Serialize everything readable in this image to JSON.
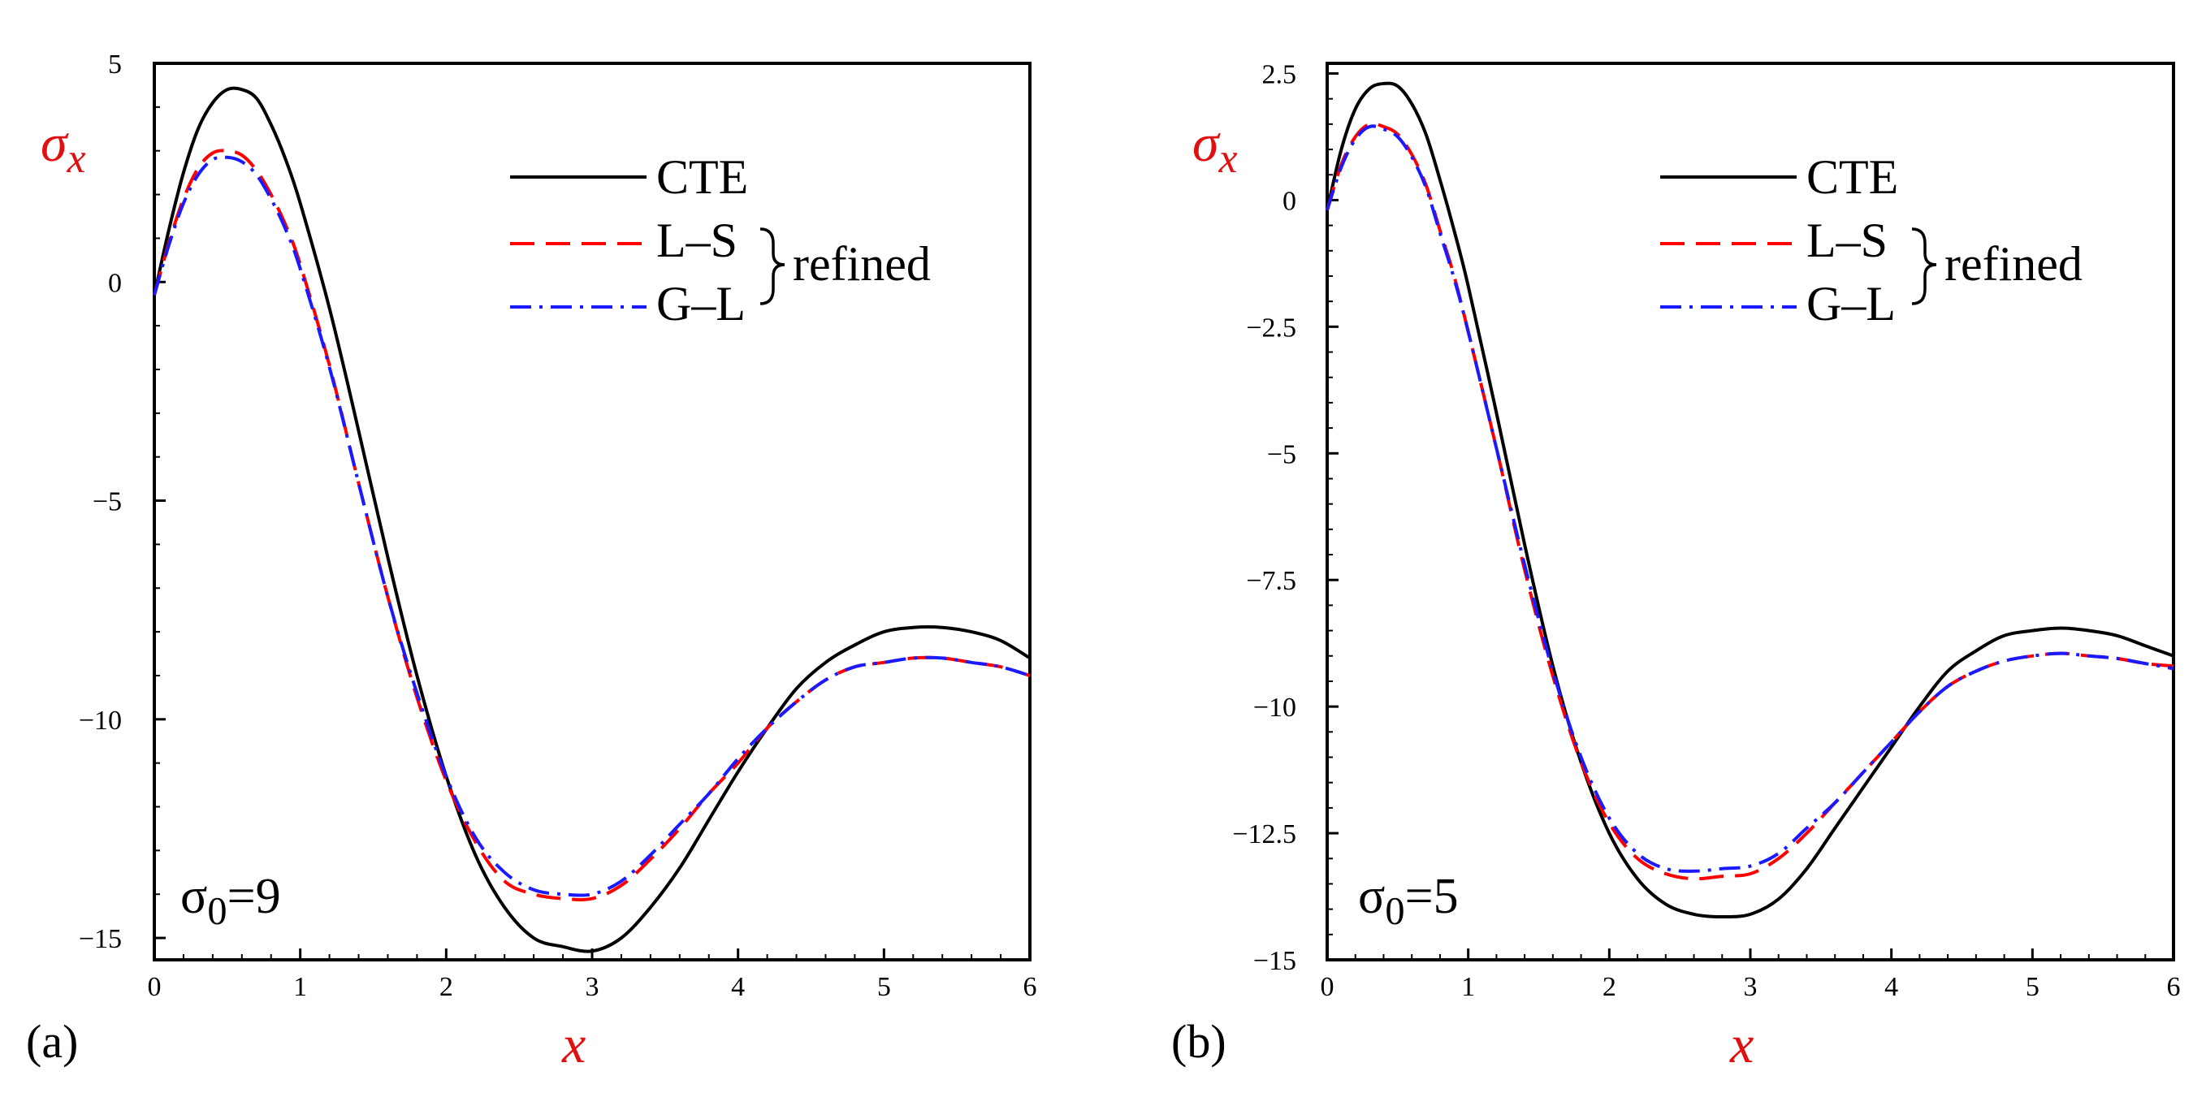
{
  "chart_data": [
    {
      "type": "line",
      "panel_label": "(a)",
      "xlabel": "x",
      "ylabel": "σx",
      "annotation": "σ0=9",
      "xlim": [
        0,
        6
      ],
      "ylim": [
        -15.5,
        5
      ],
      "xticks": [
        0,
        1,
        2,
        3,
        4,
        5,
        6
      ],
      "yticks": [
        5,
        0,
        -5,
        -10,
        -15
      ],
      "xtick_labels": [
        "0",
        "1",
        "2",
        "3",
        "4",
        "5",
        "6"
      ],
      "ytick_labels": [
        "5",
        "0",
        "−5",
        "−10",
        "−15"
      ],
      "legend": {
        "placement": "top-right",
        "group_label": "refined"
      },
      "series": [
        {
          "name": "CTE",
          "color": "#000000",
          "style": "solid",
          "x": [
            0,
            0.1,
            0.2,
            0.3,
            0.4,
            0.5,
            0.6,
            0.7,
            0.8,
            0.9,
            1.0,
            1.2,
            1.4,
            1.6,
            1.8,
            2.0,
            2.2,
            2.4,
            2.6,
            2.8,
            3.0,
            3.2,
            3.4,
            3.6,
            3.8,
            4.0,
            4.2,
            4.4,
            4.6,
            4.8,
            5.0,
            5.2,
            5.4,
            5.6,
            5.8,
            6.0
          ],
          "y": [
            -0.3,
            1.2,
            2.5,
            3.5,
            4.1,
            4.4,
            4.4,
            4.2,
            3.6,
            2.8,
            1.8,
            -0.6,
            -3.4,
            -6.3,
            -9.0,
            -11.3,
            -13.1,
            -14.3,
            -15.0,
            -15.2,
            -15.3,
            -15.0,
            -14.3,
            -13.4,
            -12.3,
            -11.2,
            -10.2,
            -9.3,
            -8.7,
            -8.3,
            -8.0,
            -7.9,
            -7.9,
            -8.0,
            -8.2,
            -8.6
          ]
        },
        {
          "name": "L–S",
          "color": "#ff0000",
          "style": "dashed",
          "x": [
            0,
            0.1,
            0.2,
            0.3,
            0.4,
            0.5,
            0.6,
            0.7,
            0.8,
            0.9,
            1.0,
            1.2,
            1.4,
            1.6,
            1.8,
            2.0,
            2.2,
            2.4,
            2.6,
            2.8,
            3.0,
            3.2,
            3.4,
            3.6,
            3.8,
            4.0,
            4.2,
            4.4,
            4.6,
            4.8,
            5.0,
            5.2,
            5.4,
            5.6,
            5.8,
            6.0
          ],
          "y": [
            -0.3,
            0.9,
            1.9,
            2.6,
            2.95,
            3.0,
            2.9,
            2.55,
            2.0,
            1.3,
            0.4,
            -1.9,
            -4.6,
            -7.2,
            -9.5,
            -11.4,
            -12.8,
            -13.7,
            -14.0,
            -14.1,
            -14.1,
            -13.8,
            -13.2,
            -12.5,
            -11.7,
            -11.0,
            -10.2,
            -9.6,
            -9.1,
            -8.8,
            -8.7,
            -8.6,
            -8.6,
            -8.7,
            -8.8,
            -9.0
          ]
        },
        {
          "name": "G–L",
          "color": "#1a1aff",
          "style": "dashdot",
          "x": [
            0,
            0.1,
            0.2,
            0.3,
            0.4,
            0.5,
            0.6,
            0.7,
            0.8,
            0.9,
            1.0,
            1.2,
            1.4,
            1.6,
            1.8,
            2.0,
            2.2,
            2.4,
            2.6,
            2.8,
            3.0,
            3.2,
            3.4,
            3.6,
            3.8,
            4.0,
            4.2,
            4.4,
            4.6,
            4.8,
            5.0,
            5.2,
            5.4,
            5.6,
            5.8,
            6.0
          ],
          "y": [
            -0.3,
            0.85,
            1.8,
            2.45,
            2.8,
            2.85,
            2.75,
            2.45,
            1.9,
            1.2,
            0.3,
            -1.95,
            -4.6,
            -7.2,
            -9.4,
            -11.3,
            -12.7,
            -13.5,
            -13.9,
            -14.0,
            -14.0,
            -13.7,
            -13.1,
            -12.4,
            -11.7,
            -10.9,
            -10.2,
            -9.6,
            -9.1,
            -8.8,
            -8.7,
            -8.6,
            -8.6,
            -8.7,
            -8.8,
            -9.0
          ]
        }
      ]
    },
    {
      "type": "line",
      "panel_label": "(b)",
      "xlabel": "x",
      "ylabel": "σx",
      "annotation": "σ0=5",
      "xlim": [
        0,
        6
      ],
      "ylim": [
        -15,
        2.7
      ],
      "xticks": [
        0,
        1,
        2,
        3,
        4,
        5,
        6
      ],
      "yticks": [
        2.5,
        0,
        -2.5,
        -5,
        -7.5,
        -10,
        -12.5,
        -15
      ],
      "xtick_labels": [
        "0",
        "1",
        "2",
        "3",
        "4",
        "5",
        "6"
      ],
      "ytick_labels": [
        "2.5",
        "0",
        "−2.5",
        "−5",
        "−7.5",
        "−10",
        "−12.5",
        "−15"
      ],
      "legend": {
        "placement": "top-right",
        "group_label": "refined"
      },
      "series": [
        {
          "name": "CTE",
          "color": "#000000",
          "style": "solid",
          "x": [
            0,
            0.1,
            0.2,
            0.3,
            0.4,
            0.5,
            0.6,
            0.7,
            0.8,
            0.9,
            1.0,
            1.2,
            1.4,
            1.6,
            1.8,
            2.0,
            2.2,
            2.4,
            2.6,
            2.8,
            3.0,
            3.2,
            3.4,
            3.6,
            3.8,
            4.0,
            4.2,
            4.4,
            4.6,
            4.8,
            5.0,
            5.2,
            5.4,
            5.6,
            5.8,
            6.0
          ],
          "y": [
            -0.2,
            1.0,
            1.8,
            2.2,
            2.3,
            2.25,
            1.9,
            1.3,
            0.4,
            -0.6,
            -1.7,
            -4.2,
            -6.8,
            -9.2,
            -11.1,
            -12.5,
            -13.4,
            -13.9,
            -14.1,
            -14.15,
            -14.1,
            -13.8,
            -13.2,
            -12.4,
            -11.6,
            -10.8,
            -10.0,
            -9.3,
            -8.9,
            -8.6,
            -8.5,
            -8.45,
            -8.5,
            -8.6,
            -8.8,
            -9.0
          ]
        },
        {
          "name": "L–S",
          "color": "#ff0000",
          "style": "dashed",
          "x": [
            0,
            0.1,
            0.2,
            0.3,
            0.4,
            0.5,
            0.6,
            0.7,
            0.8,
            0.9,
            1.0,
            1.2,
            1.4,
            1.6,
            1.8,
            2.0,
            2.2,
            2.4,
            2.6,
            2.8,
            3.0,
            3.2,
            3.4,
            3.6,
            3.8,
            4.0,
            4.2,
            4.4,
            4.6,
            4.8,
            5.0,
            5.2,
            5.4,
            5.6,
            5.8,
            6.0
          ],
          "y": [
            -0.2,
            0.7,
            1.25,
            1.5,
            1.45,
            1.3,
            0.9,
            0.3,
            -0.6,
            -1.5,
            -2.6,
            -4.9,
            -7.3,
            -9.4,
            -11.1,
            -12.3,
            -13.0,
            -13.3,
            -13.4,
            -13.35,
            -13.3,
            -13.0,
            -12.5,
            -11.9,
            -11.3,
            -10.7,
            -10.1,
            -9.6,
            -9.3,
            -9.1,
            -9.0,
            -8.95,
            -9.0,
            -9.05,
            -9.15,
            -9.2
          ]
        },
        {
          "name": "G–L",
          "color": "#1a1aff",
          "style": "dashdot",
          "x": [
            0,
            0.1,
            0.2,
            0.3,
            0.4,
            0.5,
            0.6,
            0.7,
            0.8,
            0.9,
            1.0,
            1.2,
            1.4,
            1.6,
            1.8,
            2.0,
            2.2,
            2.4,
            2.6,
            2.8,
            3.0,
            3.2,
            3.4,
            3.6,
            3.8,
            4.0,
            4.2,
            4.4,
            4.6,
            4.8,
            5.0,
            5.2,
            5.4,
            5.6,
            5.8,
            6.0
          ],
          "y": [
            -0.2,
            0.65,
            1.2,
            1.45,
            1.4,
            1.25,
            0.85,
            0.25,
            -0.65,
            -1.55,
            -2.6,
            -4.9,
            -7.2,
            -9.3,
            -11.0,
            -12.2,
            -12.9,
            -13.2,
            -13.25,
            -13.2,
            -13.15,
            -12.9,
            -12.4,
            -11.9,
            -11.3,
            -10.7,
            -10.1,
            -9.6,
            -9.3,
            -9.1,
            -9.0,
            -8.95,
            -9.0,
            -9.05,
            -9.15,
            -9.25
          ]
        }
      ]
    }
  ]
}
